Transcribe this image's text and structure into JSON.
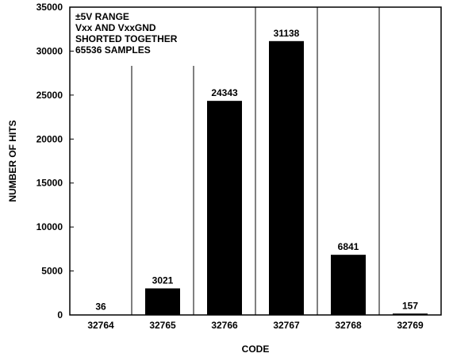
{
  "chart_data": {
    "type": "bar",
    "categories": [
      "32764",
      "32765",
      "32766",
      "32767",
      "32768",
      "32769"
    ],
    "values": [
      36,
      3021,
      24343,
      31138,
      6841,
      157
    ],
    "data_labels": [
      "36",
      "3021",
      "24343",
      "31138",
      "6841",
      "157"
    ],
    "title": "",
    "xlabel": "CODE",
    "ylabel": "NUMBER OF HITS",
    "ylim": [
      0,
      35000
    ],
    "yticks": [
      0,
      5000,
      10000,
      15000,
      20000,
      25000,
      30000,
      35000
    ],
    "ytick_labels": [
      "0",
      "5000",
      "10000",
      "15000",
      "20000",
      "25000",
      "30000",
      "35000"
    ],
    "grid": "vertical",
    "annotation": [
      "±5V RANGE",
      "Vxx AND VxxGND",
      "SHORTED TOGETHER",
      "65536 SAMPLES"
    ],
    "bar_color": "#000000"
  }
}
